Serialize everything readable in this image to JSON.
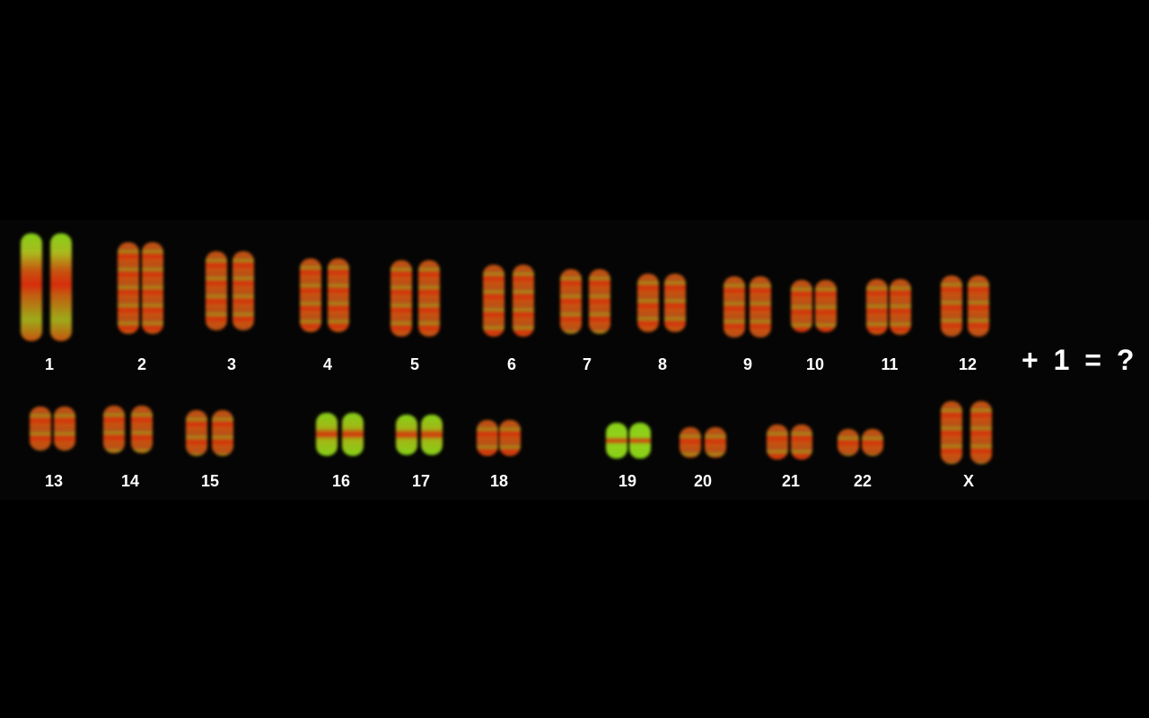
{
  "colors": {
    "background": "#000000",
    "red": "#e8300c",
    "orange": "#d65a10",
    "green": "#8fe01a",
    "label": "#ffffff"
  },
  "karyotype": {
    "row1": [
      "1",
      "2",
      "3",
      "4",
      "5",
      "6",
      "7",
      "8",
      "9",
      "10",
      "11",
      "12"
    ],
    "row2": [
      "13",
      "14",
      "15",
      "16",
      "17",
      "18",
      "19",
      "20",
      "21",
      "22",
      "X"
    ]
  },
  "equation": "+ 1 = ?"
}
